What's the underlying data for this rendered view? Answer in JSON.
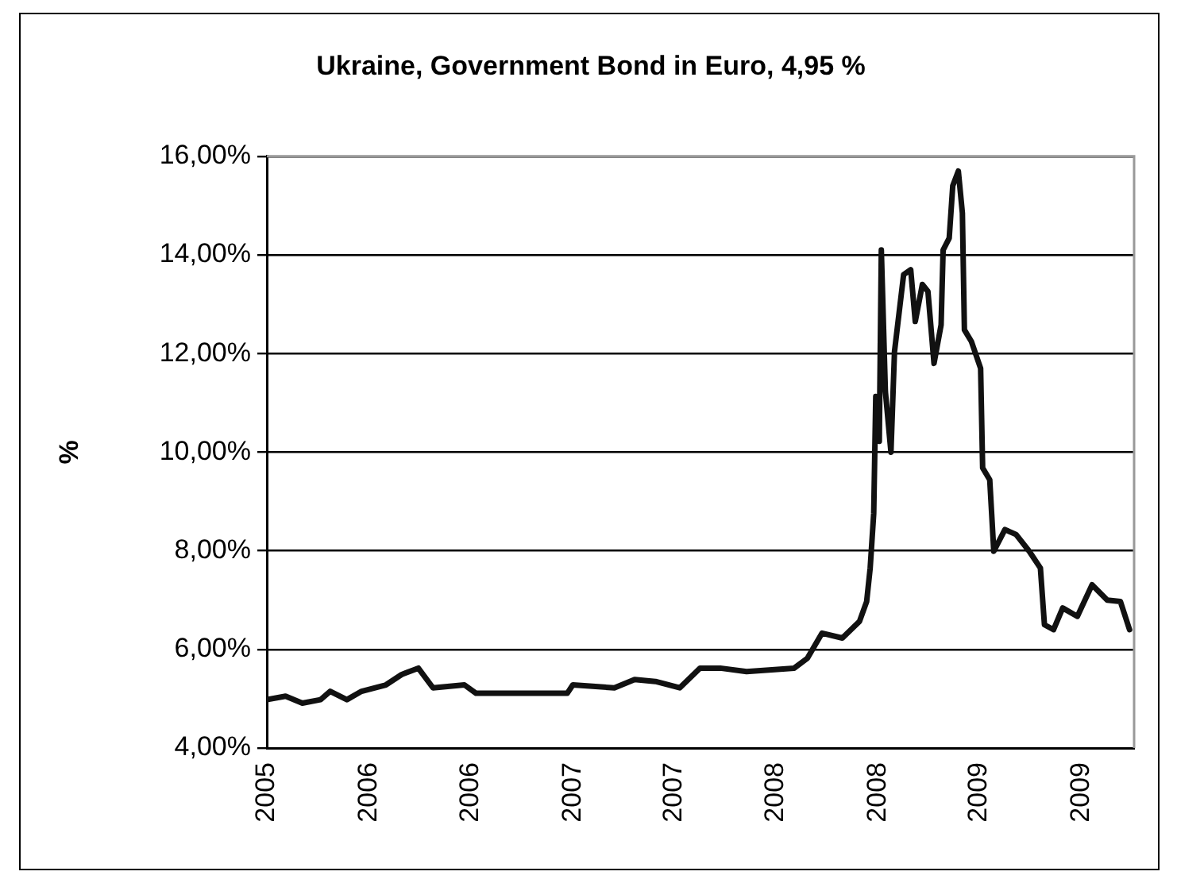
{
  "chart_data": {
    "type": "line",
    "title": "Ukraine, Government Bond in Euro, 4,95 %",
    "ylabel": "%",
    "x": [
      "2005-07-01",
      "2005-08-07",
      "2005-09-09",
      "2005-10-15",
      "2005-11-03",
      "2005-12-06",
      "2006-01-04",
      "2006-02-21",
      "2006-03-24",
      "2006-04-26",
      "2006-05-25",
      "2006-07-26",
      "2006-08-18",
      "2007-02-14",
      "2007-02-25",
      "2007-05-18",
      "2007-06-27",
      "2007-08-07",
      "2007-09-24",
      "2007-11-03",
      "2007-12-13",
      "2008-02-03",
      "2008-05-07",
      "2008-06-02",
      "2008-07-01",
      "2008-08-10",
      "2008-09-13",
      "2008-09-27",
      "2008-10-04",
      "2008-10-11",
      "2008-10-15",
      "2008-10-22",
      "2008-10-26",
      "2008-11-03",
      "2008-11-14",
      "2008-11-21",
      "2008-12-09",
      "2008-12-23",
      "2009-01-01",
      "2009-01-15",
      "2009-01-26",
      "2009-02-07",
      "2009-02-21",
      "2009-02-25",
      "2009-03-09",
      "2009-03-16",
      "2009-03-27",
      "2009-04-04",
      "2009-04-08",
      "2009-04-22",
      "2009-05-10",
      "2009-05-14",
      "2009-05-28",
      "2009-06-05",
      "2009-06-27",
      "2009-07-19",
      "2009-08-14",
      "2009-09-05",
      "2009-09-13",
      "2009-10-01",
      "2009-10-19",
      "2009-11-17",
      "2009-12-16",
      "2010-01-15",
      "2010-02-10",
      "2010-02-28"
    ],
    "series": [
      {
        "color": "#111111",
        "values": [
          4.98,
          5.05,
          4.91,
          4.98,
          5.15,
          4.98,
          5.15,
          5.28,
          5.49,
          5.62,
          5.22,
          5.28,
          5.11,
          5.11,
          5.28,
          5.22,
          5.39,
          5.35,
          5.22,
          5.62,
          5.62,
          5.55,
          5.62,
          5.82,
          6.33,
          6.23,
          6.57,
          6.97,
          7.65,
          8.76,
          11.13,
          10.22,
          14.1,
          11.23,
          10.0,
          12.04,
          13.6,
          13.7,
          12.65,
          13.4,
          13.26,
          11.8,
          12.58,
          14.1,
          14.34,
          15.4,
          15.7,
          14.85,
          12.48,
          12.24,
          11.7,
          9.68,
          9.44,
          7.99,
          8.43,
          8.33,
          7.99,
          7.65,
          6.5,
          6.4,
          6.84,
          6.67,
          7.31,
          7.0,
          6.97,
          6.4
        ]
      }
    ],
    "xlim": [
      "2005-07-01",
      "2010-03-09"
    ],
    "xticks": [
      {
        "value": "2005-07-01",
        "label": "2005"
      },
      {
        "value": "2006-01-19",
        "label": "2006"
      },
      {
        "value": "2006-08-07",
        "label": "2006"
      },
      {
        "value": "2007-02-25",
        "label": "2007"
      },
      {
        "value": "2007-09-13",
        "label": "2007"
      },
      {
        "value": "2008-04-01",
        "label": "2008"
      },
      {
        "value": "2008-10-19",
        "label": "2008"
      },
      {
        "value": "2009-05-07",
        "label": "2009"
      },
      {
        "value": "2009-11-25",
        "label": "2009"
      }
    ],
    "ylim": [
      4,
      16
    ],
    "yticks": [
      {
        "value": 4,
        "label": "4,00%"
      },
      {
        "value": 6,
        "label": "6,00%"
      },
      {
        "value": 8,
        "label": "8,00%"
      },
      {
        "value": 10,
        "label": "10,00%"
      },
      {
        "value": 12,
        "label": "12,00%"
      },
      {
        "value": 14,
        "label": "14,00%"
      },
      {
        "value": 16,
        "label": "16,00%"
      }
    ],
    "grid": "y",
    "legend": false,
    "line_style": "solid"
  }
}
